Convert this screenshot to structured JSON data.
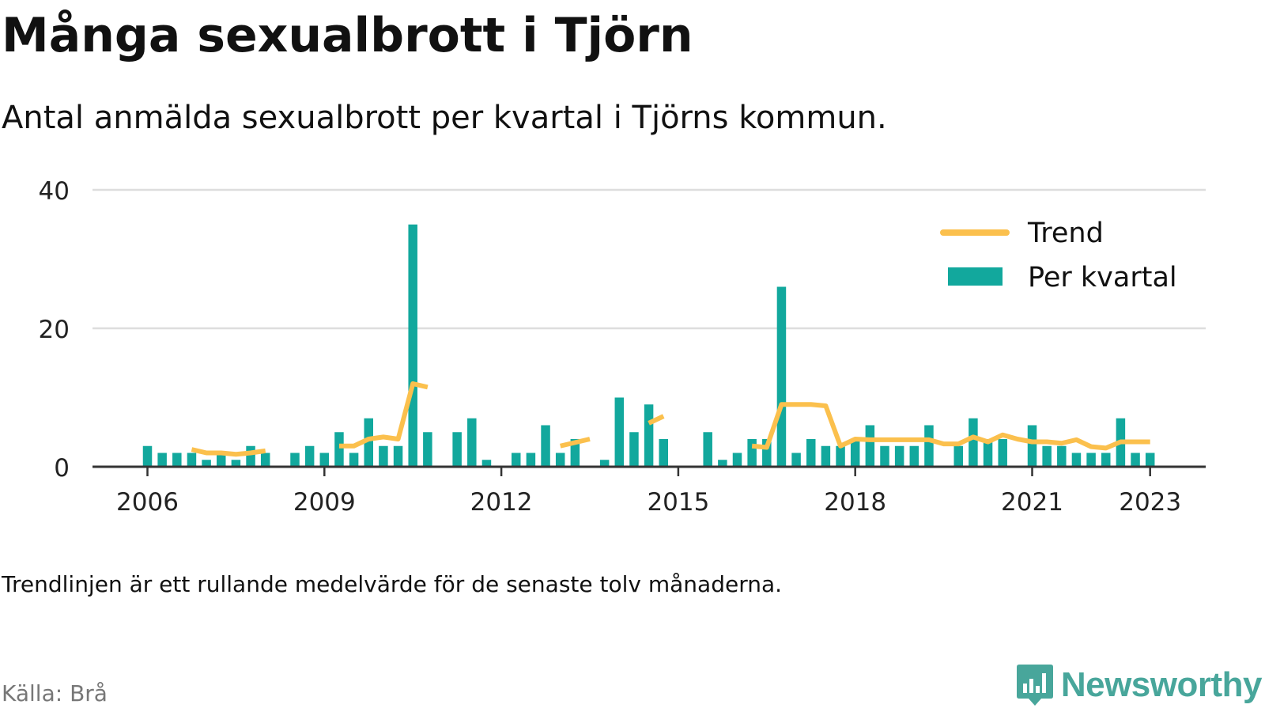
{
  "header": {
    "title": "Många sexualbrott i Tjörn",
    "subtitle": "Antal anmälda sexualbrott per kvartal i Tjörns kommun."
  },
  "footer": {
    "note": "Trendlinjen är ett rullande medelvärde för de senaste tolv månaderna.",
    "source": "Källa: Brå",
    "brand": "Newsworthy"
  },
  "colors": {
    "bar": "#12a89d",
    "trend": "#fbc04d",
    "grid": "#dddddd",
    "axis": "#333333",
    "brand": "#48a69b"
  },
  "chart_data": {
    "type": "bar",
    "title": "",
    "xlabel": "",
    "ylabel": "",
    "ylim": [
      0,
      40
    ],
    "yticks": [
      "0",
      "20",
      "40"
    ],
    "xticks": [
      "2006",
      "2009",
      "2012",
      "2015",
      "2018",
      "2021",
      "2023"
    ],
    "grid": true,
    "legend_position": "top-right",
    "x": [
      "2006-Q1",
      "2006-Q2",
      "2006-Q3",
      "2006-Q4",
      "2007-Q1",
      "2007-Q2",
      "2007-Q3",
      "2007-Q4",
      "2008-Q1",
      "2008-Q2",
      "2008-Q3",
      "2008-Q4",
      "2009-Q1",
      "2009-Q2",
      "2009-Q3",
      "2009-Q4",
      "2010-Q1",
      "2010-Q2",
      "2010-Q3",
      "2010-Q4",
      "2011-Q1",
      "2011-Q2",
      "2011-Q3",
      "2011-Q4",
      "2012-Q1",
      "2012-Q2",
      "2012-Q3",
      "2012-Q4",
      "2013-Q1",
      "2013-Q2",
      "2013-Q3",
      "2013-Q4",
      "2014-Q1",
      "2014-Q2",
      "2014-Q3",
      "2014-Q4",
      "2015-Q1",
      "2015-Q2",
      "2015-Q3",
      "2015-Q4",
      "2016-Q1",
      "2016-Q2",
      "2016-Q3",
      "2016-Q4",
      "2017-Q1",
      "2017-Q2",
      "2017-Q3",
      "2017-Q4",
      "2018-Q1",
      "2018-Q2",
      "2018-Q3",
      "2018-Q4",
      "2019-Q1",
      "2019-Q2",
      "2019-Q3",
      "2019-Q4",
      "2020-Q1",
      "2020-Q2",
      "2020-Q3",
      "2020-Q4",
      "2021-Q1",
      "2021-Q2",
      "2021-Q3",
      "2021-Q4",
      "2022-Q1",
      "2022-Q2",
      "2022-Q3",
      "2022-Q4",
      "2023-Q1"
    ],
    "series": [
      {
        "name": "Per kvartal",
        "type": "bar",
        "values": [
          3,
          2,
          2,
          2,
          1,
          2,
          1,
          3,
          2,
          null,
          2,
          3,
          2,
          5,
          2,
          7,
          3,
          3,
          35,
          5,
          null,
          5,
          7,
          1,
          null,
          2,
          2,
          6,
          2,
          4,
          null,
          1,
          10,
          5,
          9,
          4,
          null,
          null,
          5,
          1,
          2,
          4,
          4,
          26,
          2,
          4,
          3,
          3,
          4,
          6,
          3,
          3,
          3,
          6,
          null,
          3,
          7,
          4,
          4,
          null,
          6,
          3,
          3,
          2,
          2,
          2,
          7,
          2,
          2
        ]
      },
      {
        "name": "Trend",
        "type": "line",
        "values": [
          null,
          null,
          null,
          2.5,
          2,
          2,
          1.8,
          2,
          2.3,
          null,
          null,
          null,
          null,
          3,
          3,
          4,
          4.3,
          4,
          12,
          11.5,
          null,
          null,
          null,
          null,
          null,
          null,
          null,
          null,
          3,
          3.5,
          4,
          null,
          null,
          null,
          6.3,
          7.3,
          null,
          null,
          null,
          null,
          null,
          3,
          2.8,
          9,
          9,
          9,
          8.8,
          3,
          4,
          3.9,
          3.9,
          3.9,
          3.9,
          3.9,
          3.3,
          3.3,
          4.3,
          3.6,
          4.6,
          4,
          3.6,
          3.6,
          3.4,
          3.9,
          2.9,
          2.7,
          3.6,
          3.6,
          3.6
        ]
      }
    ]
  }
}
